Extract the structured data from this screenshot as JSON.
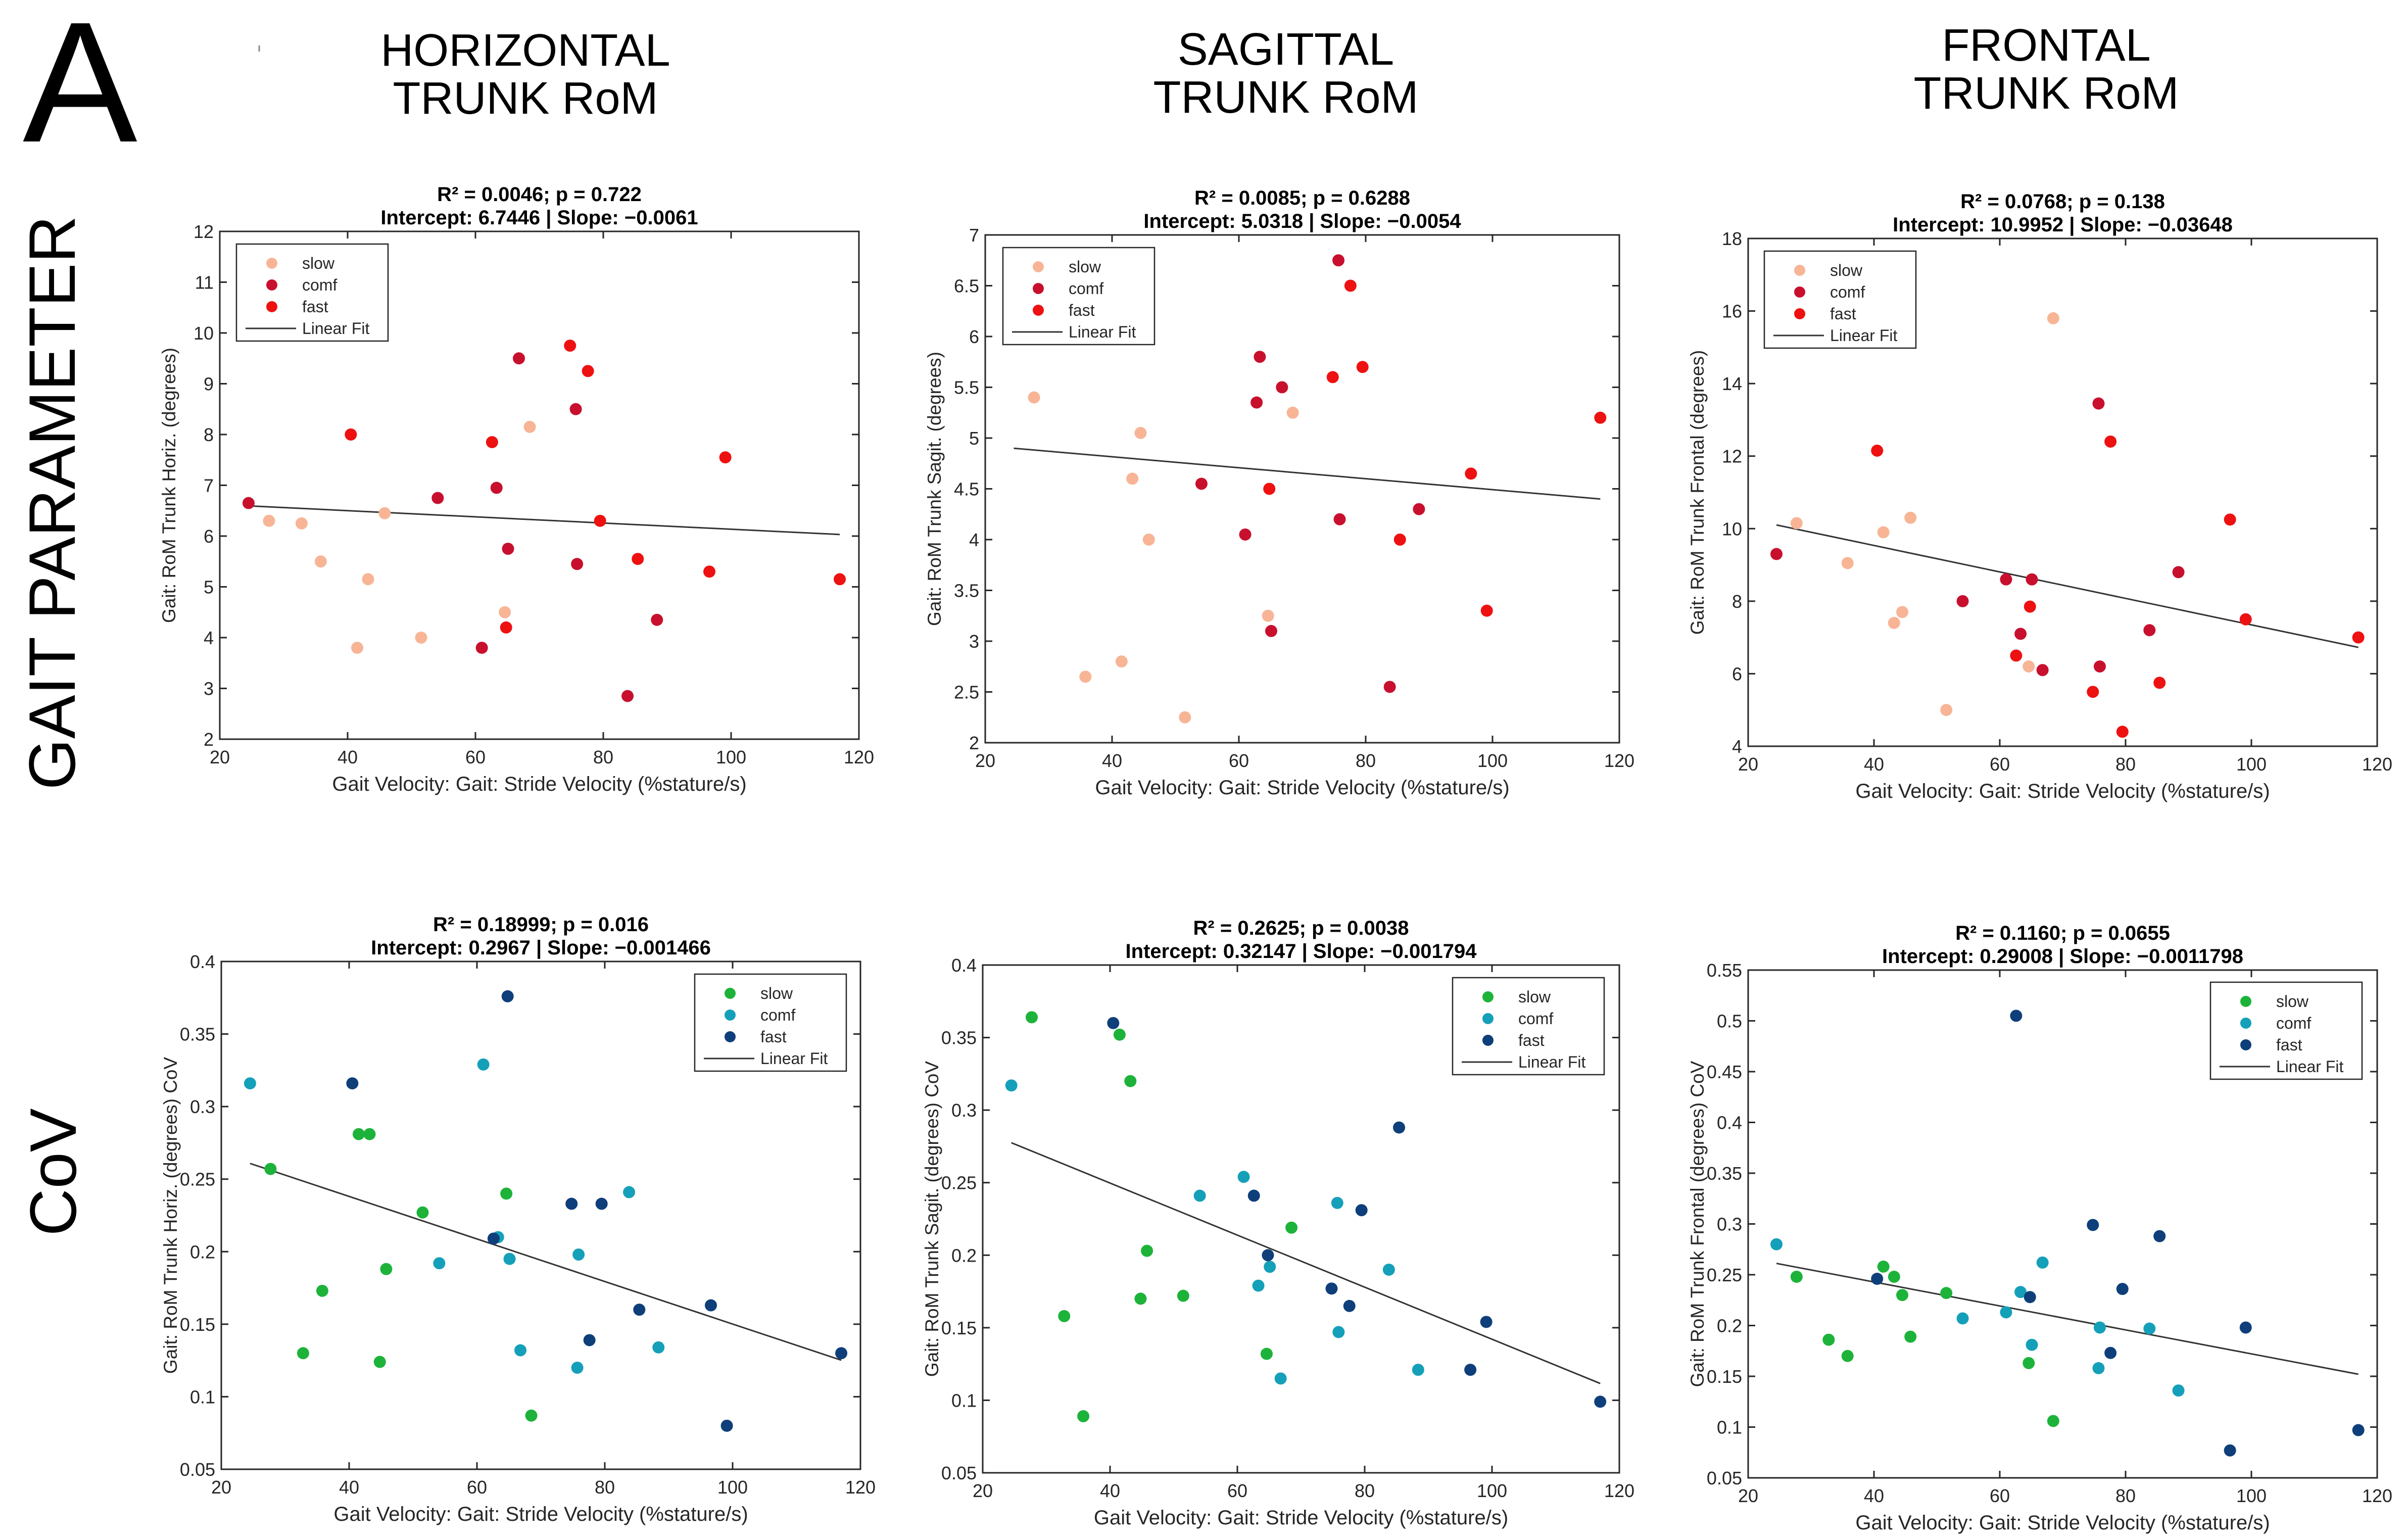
{
  "figure": {
    "panel_letter": "A",
    "column_headers": [
      [
        "HORIZONTAL",
        "TRUNK RoM"
      ],
      [
        "SAGITTAL",
        "TRUNK RoM"
      ],
      [
        "FRONTAL",
        "TRUNK RoM"
      ]
    ],
    "row_labels": [
      "GAIT PARAMETER",
      "CoV"
    ]
  },
  "colors": {
    "slow_top": "#f7b596",
    "comf_top": "#c8102e",
    "fast_top": "#ee1111",
    "slow_bottom": "#1db33a",
    "comf_bottom": "#15a0b9",
    "fast_bottom": "#0e3f7a",
    "fit_line": "#333333"
  },
  "chart_data": [
    {
      "type": "scatter",
      "title_line1": "R² = 0.0046; p = 0.722",
      "title_line2": "Intercept: 6.7446 | Slope: −0.0061",
      "xlabel": "Gait Velocity: Gait: Stride Velocity (%stature/s)",
      "ylabel": "Gait: RoM Trunk Horiz. (degrees)",
      "xlim": [
        20,
        120
      ],
      "ylim": [
        2,
        12
      ],
      "xticks": [
        20,
        40,
        60,
        80,
        100,
        120
      ],
      "yticks": [
        2,
        3,
        4,
        5,
        6,
        7,
        8,
        9,
        10,
        11,
        12
      ],
      "fit": {
        "intercept": 6.7446,
        "slope": -0.0061,
        "xrange": [
          24.5,
          117
        ]
      },
      "legend": [
        "slow",
        "comf",
        "fast",
        "Linear Fit"
      ],
      "series": [
        {
          "name": "slow",
          "color_key": "slow_top",
          "points": [
            [
              27.7,
              6.3
            ],
            [
              32.8,
              6.25
            ],
            [
              35.8,
              5.5
            ],
            [
              41.5,
              3.8
            ],
            [
              43.2,
              5.15
            ],
            [
              45.8,
              6.45
            ],
            [
              51.5,
              4.0
            ],
            [
              64.6,
              4.5
            ],
            [
              68.5,
              8.15
            ]
          ]
        },
        {
          "name": "comf",
          "color_key": "comf_top",
          "points": [
            [
              24.5,
              6.65
            ],
            [
              54.1,
              6.75
            ],
            [
              61.0,
              3.8
            ],
            [
              63.3,
              6.95
            ],
            [
              65.1,
              5.75
            ],
            [
              66.8,
              9.5
            ],
            [
              75.7,
              8.5
            ],
            [
              75.9,
              5.45
            ],
            [
              83.8,
              2.85
            ],
            [
              88.4,
              4.35
            ]
          ]
        },
        {
          "name": "fast",
          "color_key": "fast_top",
          "points": [
            [
              40.5,
              8.0
            ],
            [
              62.6,
              7.85
            ],
            [
              64.8,
              4.2
            ],
            [
              74.8,
              9.75
            ],
            [
              77.6,
              9.25
            ],
            [
              79.5,
              6.3
            ],
            [
              85.4,
              5.55
            ],
            [
              96.6,
              5.3
            ],
            [
              99.1,
              7.55
            ],
            [
              117.0,
              5.15
            ]
          ]
        }
      ]
    },
    {
      "type": "scatter",
      "title_line1": "R² = 0.0085; p = 0.6288",
      "title_line2": "Intercept: 5.0318 | Slope: −0.0054",
      "xlabel": "Gait Velocity: Gait: Stride Velocity (%stature/s)",
      "ylabel": "Gait: RoM Trunk Sagit. (degrees)",
      "xlim": [
        20,
        120
      ],
      "ylim": [
        2,
        7
      ],
      "xticks": [
        20,
        40,
        60,
        80,
        100,
        120
      ],
      "yticks": [
        2,
        2.5,
        3,
        3.5,
        4,
        4.5,
        5,
        5.5,
        6,
        6.5,
        7
      ],
      "fit": {
        "intercept": 5.0318,
        "slope": -0.0054,
        "xrange": [
          24.5,
          117
        ]
      },
      "legend": [
        "slow",
        "comf",
        "fast",
        "Linear Fit"
      ],
      "series": [
        {
          "name": "slow",
          "color_key": "slow_top",
          "points": [
            [
              27.7,
              5.4
            ],
            [
              35.8,
              2.65
            ],
            [
              41.5,
              2.8
            ],
            [
              43.2,
              4.6
            ],
            [
              44.5,
              5.05
            ],
            [
              45.8,
              4.0
            ],
            [
              51.5,
              2.25
            ],
            [
              64.6,
              3.25
            ],
            [
              68.5,
              5.25
            ]
          ]
        },
        {
          "name": "comf",
          "color_key": "comf_top",
          "points": [
            [
              54.1,
              4.55
            ],
            [
              61.0,
              4.05
            ],
            [
              62.8,
              5.35
            ],
            [
              63.3,
              5.8
            ],
            [
              65.1,
              3.1
            ],
            [
              66.8,
              5.5
            ],
            [
              75.7,
              6.75
            ],
            [
              75.9,
              4.2
            ],
            [
              83.8,
              2.55
            ],
            [
              88.4,
              4.3
            ]
          ]
        },
        {
          "name": "fast",
          "color_key": "fast_top",
          "points": [
            [
              64.8,
              4.5
            ],
            [
              74.8,
              5.6
            ],
            [
              77.6,
              6.5
            ],
            [
              79.5,
              5.7
            ],
            [
              85.4,
              4.0
            ],
            [
              96.6,
              4.65
            ],
            [
              99.1,
              3.3
            ],
            [
              117.0,
              5.2
            ]
          ]
        }
      ]
    },
    {
      "type": "scatter",
      "title_line1": "R² = 0.0768; p = 0.138",
      "title_line2": "Intercept: 10.9952 | Slope: −0.03648",
      "xlabel": "Gait Velocity: Gait: Stride Velocity (%stature/s)",
      "ylabel": "Gait: RoM Trunk Frontal (degrees)",
      "xlim": [
        20,
        120
      ],
      "ylim": [
        4,
        18
      ],
      "xticks": [
        20,
        40,
        60,
        80,
        100,
        120
      ],
      "yticks": [
        4,
        6,
        8,
        10,
        12,
        14,
        16,
        18
      ],
      "fit": {
        "intercept": 10.9952,
        "slope": -0.03648,
        "xrange": [
          24.5,
          117
        ]
      },
      "legend": [
        "slow",
        "comf",
        "fast",
        "Linear Fit"
      ],
      "series": [
        {
          "name": "slow",
          "color_key": "slow_top",
          "points": [
            [
              27.7,
              10.15
            ],
            [
              35.8,
              9.05
            ],
            [
              41.5,
              9.9
            ],
            [
              43.2,
              7.4
            ],
            [
              44.5,
              7.7
            ],
            [
              45.8,
              10.3
            ],
            [
              51.5,
              5.0
            ],
            [
              64.6,
              6.2
            ],
            [
              68.5,
              15.8
            ]
          ]
        },
        {
          "name": "comf",
          "color_key": "comf_top",
          "points": [
            [
              24.5,
              9.3
            ],
            [
              54.1,
              8.0
            ],
            [
              61.0,
              8.6
            ],
            [
              63.3,
              7.1
            ],
            [
              65.1,
              8.6
            ],
            [
              66.8,
              6.1
            ],
            [
              75.7,
              13.45
            ],
            [
              75.9,
              6.2
            ],
            [
              83.8,
              7.2
            ],
            [
              88.4,
              8.8
            ]
          ]
        },
        {
          "name": "fast",
          "color_key": "fast_top",
          "points": [
            [
              40.5,
              12.15
            ],
            [
              62.6,
              6.5
            ],
            [
              64.8,
              7.85
            ],
            [
              74.8,
              5.5
            ],
            [
              77.6,
              12.4
            ],
            [
              79.5,
              4.4
            ],
            [
              85.4,
              5.75
            ],
            [
              96.6,
              10.25
            ],
            [
              99.1,
              7.5
            ],
            [
              117.0,
              7.0
            ]
          ]
        }
      ]
    },
    {
      "type": "scatter",
      "title_line1": "R² = 0.18999; p = 0.016",
      "title_line2": "Intercept: 0.2967 | Slope: −0.001466",
      "xlabel": "Gait Velocity: Gait: Stride Velocity (%stature/s)",
      "ylabel": "Gait: RoM Trunk Horiz. (degrees) CoV",
      "xlim": [
        20,
        120
      ],
      "ylim": [
        0.05,
        0.4
      ],
      "xticks": [
        20,
        40,
        60,
        80,
        100,
        120
      ],
      "yticks": [
        0.05,
        0.1,
        0.15,
        0.2,
        0.25,
        0.3,
        0.35,
        0.4
      ],
      "fit": {
        "intercept": 0.2967,
        "slope": -0.001466,
        "xrange": [
          24.5,
          117
        ]
      },
      "legend": [
        "slow",
        "comf",
        "fast",
        "Linear Fit"
      ],
      "series": [
        {
          "name": "slow",
          "color_key": "slow_bottom",
          "points": [
            [
              27.7,
              0.257
            ],
            [
              32.8,
              0.13
            ],
            [
              35.8,
              0.173
            ],
            [
              41.5,
              0.281
            ],
            [
              43.2,
              0.281
            ],
            [
              44.8,
              0.124
            ],
            [
              45.8,
              0.188
            ],
            [
              51.5,
              0.227
            ],
            [
              64.6,
              0.24
            ],
            [
              68.5,
              0.087
            ]
          ]
        },
        {
          "name": "comf",
          "color_key": "comf_bottom",
          "points": [
            [
              24.5,
              0.316
            ],
            [
              54.1,
              0.192
            ],
            [
              61.0,
              0.329
            ],
            [
              63.3,
              0.21
            ],
            [
              65.1,
              0.195
            ],
            [
              66.8,
              0.132
            ],
            [
              75.7,
              0.12
            ],
            [
              75.9,
              0.198
            ],
            [
              83.8,
              0.241
            ],
            [
              88.4,
              0.134
            ]
          ]
        },
        {
          "name": "fast",
          "color_key": "fast_bottom",
          "points": [
            [
              40.5,
              0.316
            ],
            [
              62.6,
              0.209
            ],
            [
              64.8,
              0.376
            ],
            [
              74.8,
              0.233
            ],
            [
              77.6,
              0.139
            ],
            [
              79.5,
              0.233
            ],
            [
              85.4,
              0.16
            ],
            [
              96.6,
              0.163
            ],
            [
              99.1,
              0.08
            ],
            [
              117.0,
              0.13
            ]
          ]
        }
      ]
    },
    {
      "type": "scatter",
      "title_line1": "R² = 0.2625; p = 0.0038",
      "title_line2": "Intercept: 0.32147 | Slope: −0.001794",
      "xlabel": "Gait Velocity: Gait: Stride Velocity (%stature/s)",
      "ylabel": "Gait: RoM Trunk Sagit. (degrees) CoV",
      "xlim": [
        20,
        120
      ],
      "ylim": [
        0.05,
        0.4
      ],
      "xticks": [
        20,
        40,
        60,
        80,
        100,
        120
      ],
      "yticks": [
        0.05,
        0.1,
        0.15,
        0.2,
        0.25,
        0.3,
        0.35,
        0.4
      ],
      "fit": {
        "intercept": 0.32147,
        "slope": -0.001794,
        "xrange": [
          24.5,
          117
        ]
      },
      "legend": [
        "slow",
        "comf",
        "fast",
        "Linear Fit"
      ],
      "series": [
        {
          "name": "slow",
          "color_key": "slow_bottom",
          "points": [
            [
              27.7,
              0.364
            ],
            [
              32.8,
              0.158
            ],
            [
              35.8,
              0.089
            ],
            [
              41.5,
              0.352
            ],
            [
              43.2,
              0.32
            ],
            [
              44.8,
              0.17
            ],
            [
              45.8,
              0.203
            ],
            [
              51.5,
              0.172
            ],
            [
              64.6,
              0.132
            ],
            [
              68.5,
              0.219
            ]
          ]
        },
        {
          "name": "comf",
          "color_key": "comf_bottom",
          "points": [
            [
              24.5,
              0.317
            ],
            [
              54.1,
              0.241
            ],
            [
              61.0,
              0.254
            ],
            [
              63.3,
              0.179
            ],
            [
              65.1,
              0.192
            ],
            [
              66.8,
              0.115
            ],
            [
              75.7,
              0.236
            ],
            [
              75.9,
              0.147
            ],
            [
              83.8,
              0.19
            ],
            [
              88.4,
              0.121
            ]
          ]
        },
        {
          "name": "fast",
          "color_key": "fast_bottom",
          "points": [
            [
              40.5,
              0.36
            ],
            [
              62.6,
              0.241
            ],
            [
              64.8,
              0.2
            ],
            [
              74.8,
              0.177
            ],
            [
              77.6,
              0.165
            ],
            [
              79.5,
              0.231
            ],
            [
              85.4,
              0.288
            ],
            [
              96.6,
              0.121
            ],
            [
              99.1,
              0.154
            ],
            [
              117.0,
              0.099
            ]
          ]
        }
      ]
    },
    {
      "type": "scatter",
      "title_line1": "R² = 0.1160; p = 0.0655",
      "title_line2": "Intercept: 0.29008 | Slope: −0.0011798",
      "xlabel": "Gait Velocity: Gait: Stride Velocity (%stature/s)",
      "ylabel": "Gait: RoM Trunk Frontal (degrees) CoV",
      "xlim": [
        20,
        120
      ],
      "ylim": [
        0.05,
        0.55
      ],
      "xticks": [
        20,
        40,
        60,
        80,
        100,
        120
      ],
      "yticks": [
        0.05,
        0.1,
        0.15,
        0.2,
        0.25,
        0.3,
        0.35,
        0.4,
        0.45,
        0.5,
        0.55
      ],
      "fit": {
        "intercept": 0.29008,
        "slope": -0.0011798,
        "xrange": [
          24.5,
          117
        ]
      },
      "legend": [
        "slow",
        "comf",
        "fast",
        "Linear Fit"
      ],
      "series": [
        {
          "name": "slow",
          "color_key": "slow_bottom",
          "points": [
            [
              27.7,
              0.248
            ],
            [
              32.8,
              0.186
            ],
            [
              35.8,
              0.17
            ],
            [
              41.5,
              0.258
            ],
            [
              43.2,
              0.248
            ],
            [
              44.5,
              0.23
            ],
            [
              45.8,
              0.189
            ],
            [
              51.5,
              0.232
            ],
            [
              64.6,
              0.163
            ],
            [
              68.5,
              0.106
            ]
          ]
        },
        {
          "name": "comf",
          "color_key": "comf_bottom",
          "points": [
            [
              24.5,
              0.28
            ],
            [
              54.1,
              0.207
            ],
            [
              61.0,
              0.213
            ],
            [
              63.3,
              0.233
            ],
            [
              65.1,
              0.181
            ],
            [
              66.8,
              0.262
            ],
            [
              75.7,
              0.158
            ],
            [
              75.9,
              0.198
            ],
            [
              83.8,
              0.197
            ],
            [
              88.4,
              0.136
            ]
          ]
        },
        {
          "name": "fast",
          "color_key": "fast_bottom",
          "points": [
            [
              40.5,
              0.246
            ],
            [
              62.6,
              0.505
            ],
            [
              64.8,
              0.228
            ],
            [
              74.8,
              0.299
            ],
            [
              77.6,
              0.173
            ],
            [
              79.5,
              0.236
            ],
            [
              85.4,
              0.288
            ],
            [
              96.6,
              0.077
            ],
            [
              99.1,
              0.198
            ],
            [
              117.0,
              0.097
            ]
          ]
        }
      ]
    }
  ]
}
